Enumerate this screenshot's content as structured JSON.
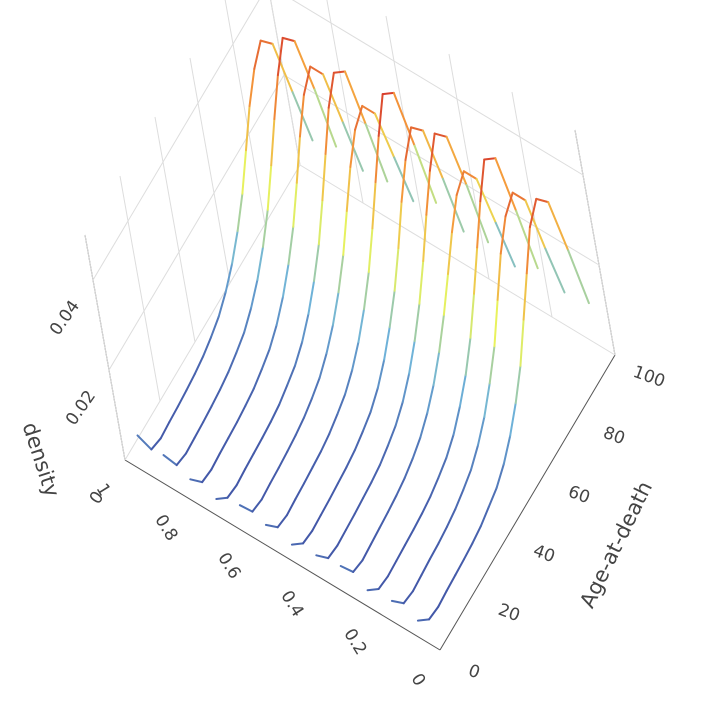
{
  "chart_data": {
    "type": "line3d",
    "zaxis_title": "density",
    "yaxis_title": "Age-at-death",
    "xlim": [
      0,
      1
    ],
    "xticks": [
      0,
      0.2,
      0.4,
      0.6,
      0.8,
      1
    ],
    "ylim": [
      0,
      100
    ],
    "yticks": [
      0,
      20,
      40,
      60,
      80,
      100
    ],
    "zlim": [
      0,
      0.05
    ],
    "zticks": [
      0,
      0.02,
      0.04
    ],
    "cmin": 0,
    "cmax": 0.045,
    "colorscale": [
      "#4052a5",
      "#6fb3d9",
      "#e9f25c",
      "#f59a3b",
      "#d3302a"
    ],
    "grid": true,
    "ages": [
      0,
      5,
      10,
      15,
      20,
      25,
      30,
      35,
      40,
      45,
      50,
      55,
      60,
      65,
      70,
      75,
      80,
      85,
      90,
      95,
      100
    ],
    "series": [
      {
        "x": 0.06,
        "values": [
          0.004,
          0.001,
          0.0005,
          0.0008,
          0.001,
          0.0012,
          0.0015,
          0.002,
          0.003,
          0.004,
          0.006,
          0.009,
          0.013,
          0.018,
          0.025,
          0.032,
          0.039,
          0.042,
          0.038,
          0.024,
          0.009
        ]
      },
      {
        "x": 0.14,
        "values": [
          0.005,
          0.0012,
          0.0006,
          0.0009,
          0.0012,
          0.0014,
          0.0018,
          0.0024,
          0.0034,
          0.0046,
          0.0068,
          0.0098,
          0.014,
          0.019,
          0.026,
          0.033,
          0.038,
          0.04,
          0.035,
          0.021,
          0.008
        ]
      },
      {
        "x": 0.22,
        "values": [
          0.004,
          0.001,
          0.0005,
          0.0007,
          0.0009,
          0.0011,
          0.0014,
          0.0019,
          0.0028,
          0.0039,
          0.0058,
          0.0088,
          0.0125,
          0.0175,
          0.024,
          0.031,
          0.038,
          0.044,
          0.041,
          0.026,
          0.01
        ]
      },
      {
        "x": 0.3,
        "values": [
          0.006,
          0.0014,
          0.0007,
          0.001,
          0.0013,
          0.0016,
          0.002,
          0.0026,
          0.0036,
          0.005,
          0.0072,
          0.0102,
          0.0142,
          0.0192,
          0.025,
          0.031,
          0.036,
          0.038,
          0.033,
          0.02,
          0.007
        ]
      },
      {
        "x": 0.38,
        "values": [
          0.005,
          0.0011,
          0.0006,
          0.0008,
          0.001,
          0.0013,
          0.0016,
          0.0021,
          0.0031,
          0.0043,
          0.0063,
          0.0093,
          0.0133,
          0.0183,
          0.0245,
          0.0315,
          0.038,
          0.043,
          0.039,
          0.025,
          0.009
        ]
      },
      {
        "x": 0.46,
        "values": [
          0.004,
          0.001,
          0.0005,
          0.0007,
          0.0009,
          0.0012,
          0.0015,
          0.002,
          0.0029,
          0.004,
          0.006,
          0.009,
          0.013,
          0.0178,
          0.024,
          0.031,
          0.037,
          0.041,
          0.037,
          0.023,
          0.008
        ]
      },
      {
        "x": 0.54,
        "values": [
          0.005,
          0.0012,
          0.0006,
          0.0009,
          0.0011,
          0.0014,
          0.0017,
          0.0023,
          0.0033,
          0.0045,
          0.0066,
          0.0096,
          0.0136,
          0.0186,
          0.025,
          0.032,
          0.039,
          0.045,
          0.042,
          0.027,
          0.011
        ]
      },
      {
        "x": 0.62,
        "values": [
          0.006,
          0.0013,
          0.0007,
          0.001,
          0.0012,
          0.0015,
          0.0019,
          0.0025,
          0.0035,
          0.0048,
          0.007,
          0.01,
          0.014,
          0.019,
          0.0255,
          0.032,
          0.037,
          0.039,
          0.034,
          0.021,
          0.008
        ]
      },
      {
        "x": 0.7,
        "values": [
          0.004,
          0.001,
          0.0005,
          0.0008,
          0.001,
          0.0012,
          0.0015,
          0.002,
          0.003,
          0.0041,
          0.0061,
          0.0091,
          0.0131,
          0.018,
          0.0245,
          0.0315,
          0.0385,
          0.043,
          0.04,
          0.025,
          0.009
        ]
      },
      {
        "x": 0.78,
        "values": [
          0.005,
          0.0011,
          0.0006,
          0.0009,
          0.0011,
          0.0013,
          0.0017,
          0.0022,
          0.0032,
          0.0044,
          0.0065,
          0.0095,
          0.0135,
          0.0185,
          0.025,
          0.032,
          0.038,
          0.041,
          0.036,
          0.022,
          0.008
        ]
      },
      {
        "x": 0.86,
        "values": [
          0.007,
          0.0015,
          0.0008,
          0.001,
          0.0012,
          0.0015,
          0.0019,
          0.0025,
          0.0035,
          0.0047,
          0.0069,
          0.0099,
          0.0139,
          0.0189,
          0.0255,
          0.0325,
          0.039,
          0.044,
          0.04,
          0.026,
          0.01
        ]
      },
      {
        "x": 0.94,
        "values": [
          0.008,
          0.0016,
          0.0008,
          0.0011,
          0.0013,
          0.0016,
          0.002,
          0.0026,
          0.0036,
          0.0049,
          0.0071,
          0.0101,
          0.0141,
          0.0191,
          0.0255,
          0.032,
          0.037,
          0.04,
          0.036,
          0.022,
          0.008
        ]
      }
    ]
  }
}
